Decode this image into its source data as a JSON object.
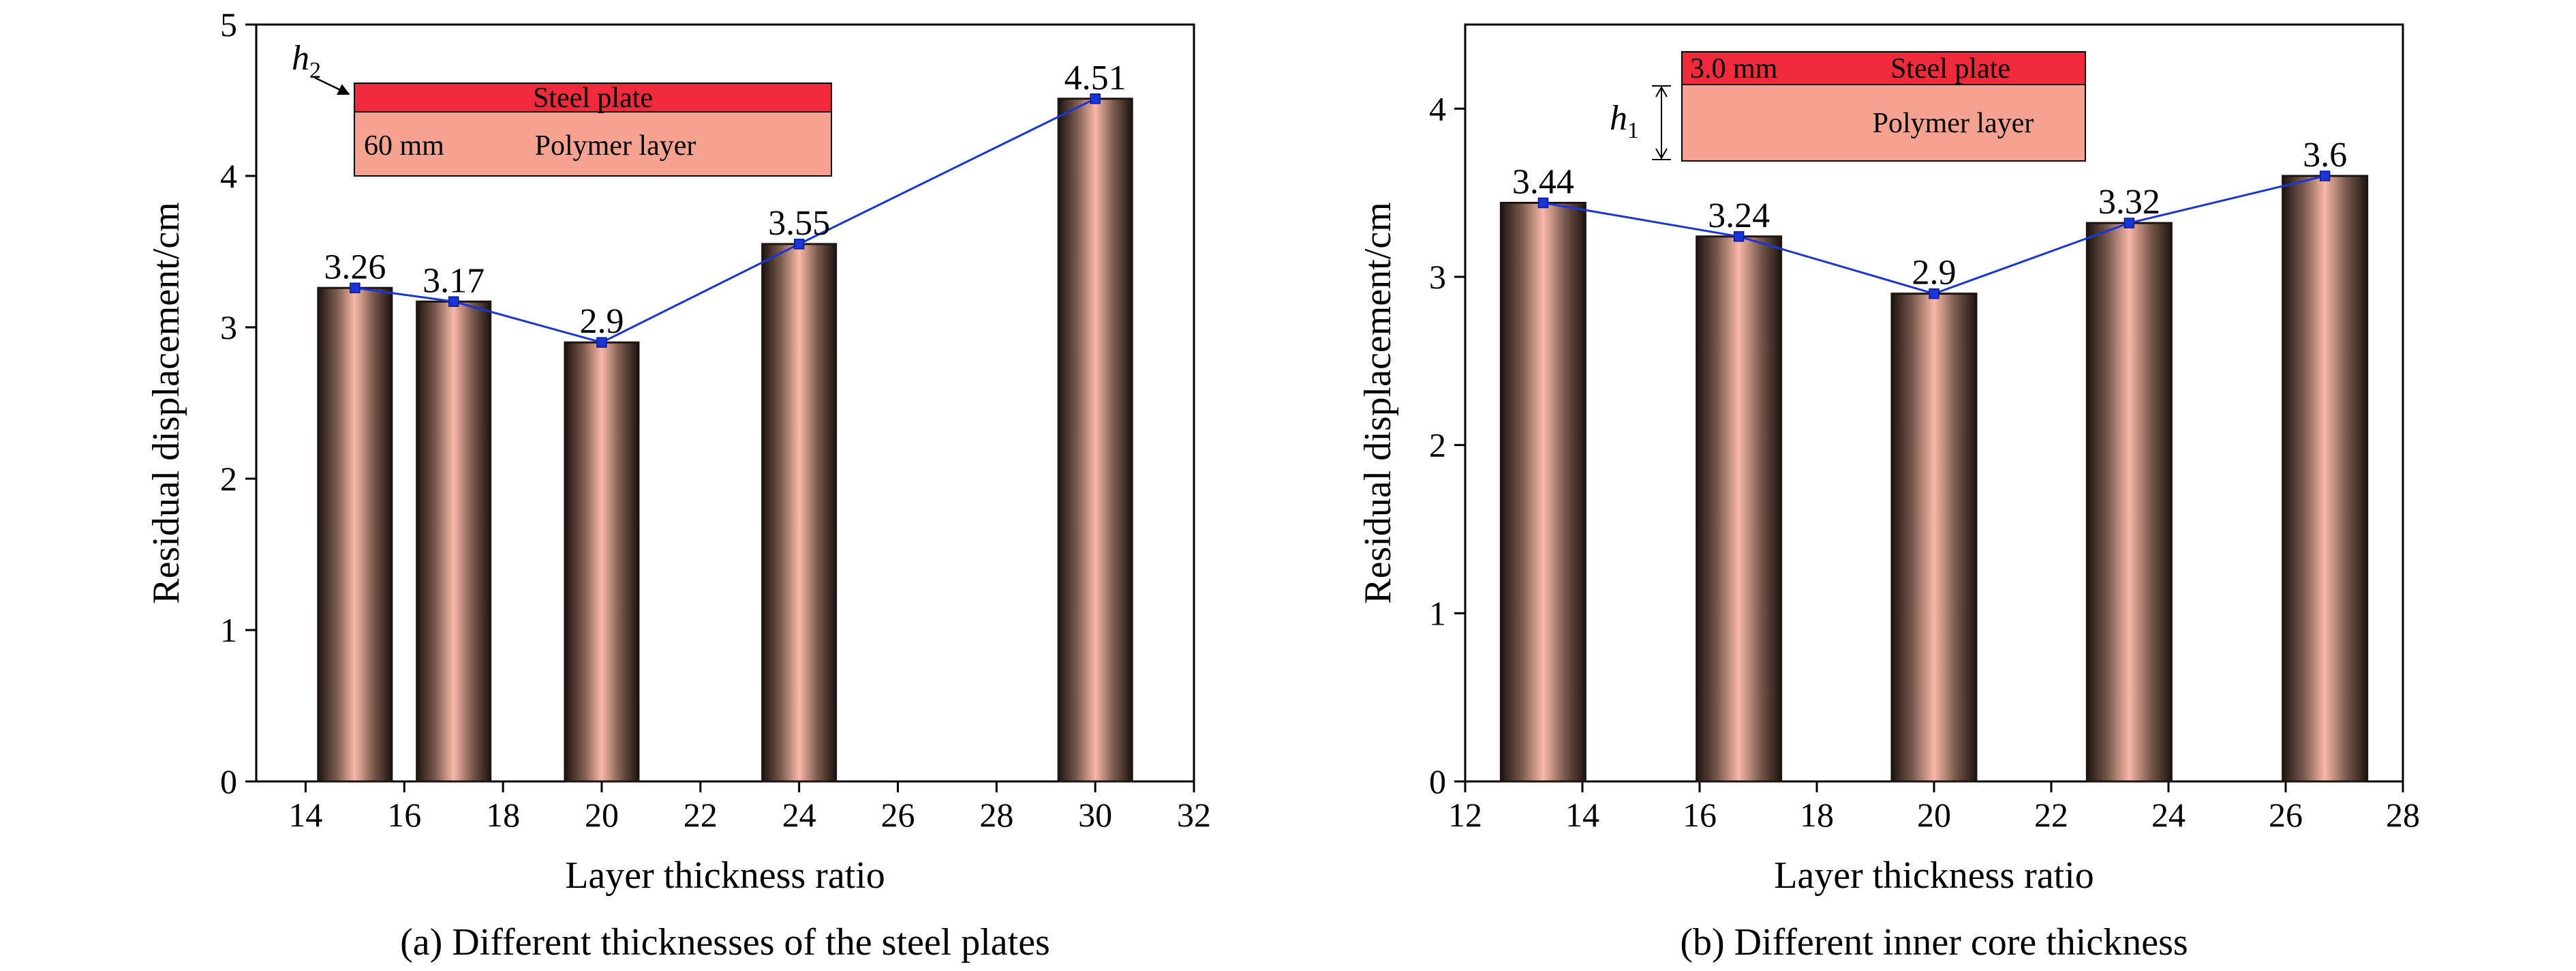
{
  "chart_data": [
    {
      "type": "bar",
      "panel_caption": "(a) Different thicknesses of the steel plates",
      "xlabel": "Layer thickness ratio",
      "ylabel": "Residual displacement/cm",
      "xlim": [
        13,
        32
      ],
      "ylim": [
        0,
        5
      ],
      "xticks": [
        "14",
        "16",
        "18",
        "20",
        "22",
        "24",
        "26",
        "28",
        "30",
        "32"
      ],
      "yticks": [
        "0",
        "1",
        "2",
        "3",
        "4",
        "5"
      ],
      "x": [
        15,
        17,
        20,
        24,
        30
      ],
      "values": [
        3.26,
        3.17,
        2.9,
        3.55,
        4.51
      ],
      "data_labels": [
        "3.26",
        "3.17",
        "2.9",
        "3.55",
        "4.51"
      ],
      "line_color": "#1a35d6",
      "inset": {
        "thickness_symbol": "h",
        "thickness_subscript": "2",
        "top_label": "Steel plate",
        "bottom_label": "Polymer layer",
        "dimension_label": "60 mm"
      }
    },
    {
      "type": "bar",
      "panel_caption": "(b) Different inner core thickness",
      "xlabel": "Layer thickness ratio",
      "ylabel": "Residual displacement/cm",
      "xlim": [
        12,
        28
      ],
      "ylim": [
        0,
        4.5
      ],
      "xticks": [
        "12",
        "14",
        "16",
        "18",
        "20",
        "22",
        "24",
        "26",
        "28"
      ],
      "yticks": [
        "0",
        "1",
        "2",
        "3",
        "4"
      ],
      "x": [
        13.33,
        16.67,
        20,
        23.33,
        26.67
      ],
      "values": [
        3.44,
        3.24,
        2.9,
        3.32,
        3.6
      ],
      "data_labels": [
        "3.44",
        "3.24",
        "2.9",
        "3.32",
        "3.6"
      ],
      "line_color": "#1a35d6",
      "inset": {
        "thickness_symbol": "h",
        "thickness_subscript": "1",
        "top_label": "Steel plate",
        "bottom_label": "Polymer layer",
        "dimension_label": "3.0 mm"
      }
    }
  ],
  "colors": {
    "steel_plate": "#ee2a3c",
    "polymer_layer": "#f5a293",
    "bar_dark": "#1e1411",
    "bar_light": "#f8b8a8",
    "line": "#1a35d6"
  }
}
